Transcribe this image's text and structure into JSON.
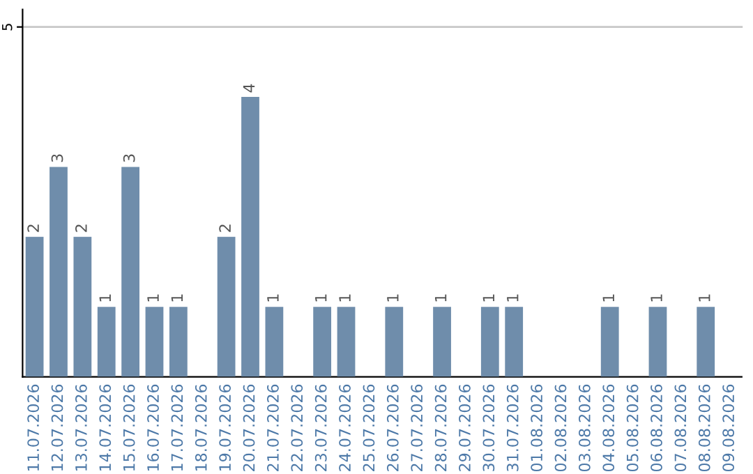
{
  "chart_data": {
    "type": "bar",
    "categories": [
      "11.07.2026",
      "12.07.2026",
      "13.07.2026",
      "14.07.2026",
      "15.07.2026",
      "16.07.2026",
      "17.07.2026",
      "18.07.2026",
      "19.07.2026",
      "20.07.2026",
      "21.07.2026",
      "22.07.2026",
      "23.07.2026",
      "24.07.2026",
      "25.07.2026",
      "26.07.2026",
      "27.07.2026",
      "28.07.2026",
      "29.07.2026",
      "30.07.2026",
      "31.07.2026",
      "01.08.2026",
      "02.08.2026",
      "03.08.2026",
      "04.08.2026",
      "05.08.2026",
      "06.08.2026",
      "07.08.2026",
      "08.08.2026",
      "09.08.2026"
    ],
    "values": [
      2,
      3,
      2,
      1,
      3,
      1,
      1,
      0,
      2,
      4,
      1,
      0,
      1,
      1,
      0,
      1,
      0,
      1,
      0,
      1,
      1,
      0,
      0,
      0,
      1,
      0,
      1,
      0,
      1,
      0
    ],
    "value_labels": [
      "2",
      "3",
      "2",
      "1",
      "3",
      "1",
      "1",
      null,
      "2",
      "4",
      "1",
      null,
      "1",
      "1",
      null,
      "1",
      null,
      "1",
      null,
      "1",
      "1",
      null,
      null,
      null,
      "1",
      null,
      "1",
      null,
      "1",
      null
    ],
    "color": "#6f8dab",
    "ylim": [
      0,
      5.25
    ],
    "yticks": [
      5
    ],
    "grid": "y"
  }
}
